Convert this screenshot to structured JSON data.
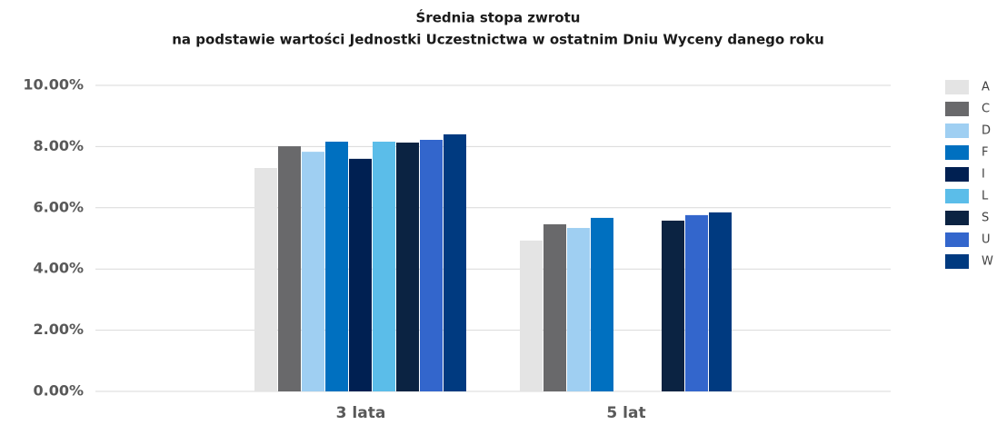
{
  "chart_data": {
    "type": "bar",
    "title": "Średnia stopa zwrotu",
    "subtitle": "na podstawie wartości Jednostki Uczestnictwa w ostatnim Dniu Wyceny danego roku",
    "categories": [
      "3 lata",
      "5 lat"
    ],
    "series": [
      {
        "name": "A",
        "color": "#e4e4e4",
        "values": [
          7.3,
          4.93
        ]
      },
      {
        "name": "C",
        "color": "#69696b",
        "values": [
          8.01,
          5.46
        ]
      },
      {
        "name": "D",
        "color": "#9fcff2",
        "values": [
          7.83,
          5.34
        ]
      },
      {
        "name": "F",
        "color": "#0070c0",
        "values": [
          8.16,
          5.67
        ]
      },
      {
        "name": "I",
        "color": "#002052",
        "values": [
          7.6,
          null
        ]
      },
      {
        "name": "L",
        "color": "#5bbde9",
        "values": [
          8.16,
          null
        ]
      },
      {
        "name": "S",
        "color": "#0b2342",
        "values": [
          8.13,
          5.58
        ]
      },
      {
        "name": "U",
        "color": "#3366cc",
        "values": [
          8.22,
          5.76
        ]
      },
      {
        "name": "W",
        "color": "#003a80",
        "values": [
          8.4,
          5.85
        ]
      }
    ],
    "ylim": [
      0,
      10
    ],
    "yticks": [
      {
        "value": 0,
        "label": "0.00%"
      },
      {
        "value": 2,
        "label": "2.00%"
      },
      {
        "value": 4,
        "label": "4.00%"
      },
      {
        "value": 6,
        "label": "6.00%"
      },
      {
        "value": 8,
        "label": "8.00%"
      },
      {
        "value": 10,
        "label": "10.00%"
      }
    ],
    "grid": true,
    "legend": "right"
  }
}
